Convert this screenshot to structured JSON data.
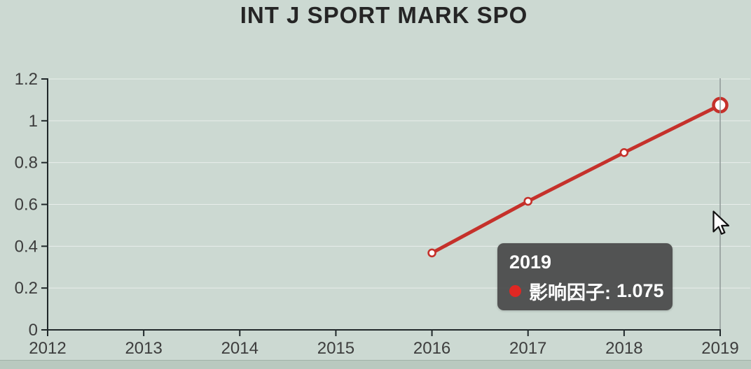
{
  "title": "INT J SPORT MARK SPO",
  "chart_data": {
    "type": "line",
    "title": "INT J SPORT MARK SPO",
    "xlabel": "",
    "ylabel": "",
    "xlim": [
      2012,
      2019
    ],
    "ylim": [
      0,
      1.2
    ],
    "x_ticks": [
      2012,
      2013,
      2014,
      2015,
      2016,
      2017,
      2018,
      2019
    ],
    "y_ticks": [
      0,
      0.2,
      0.4,
      0.6,
      0.8,
      1,
      1.2
    ],
    "y_tick_labels": [
      "0",
      "0.2",
      "0.4",
      "0.6",
      "0.8",
      "1",
      "1.2"
    ],
    "grid": "horizontal",
    "legend_position": "none",
    "series": [
      {
        "name": "影响因子",
        "color": "#c5312b",
        "marker": "open-circle",
        "x": [
          2016,
          2017,
          2018,
          2019
        ],
        "values": [
          0.368,
          0.615,
          0.848,
          1.075
        ]
      }
    ],
    "highlighted_point": {
      "year": 2019,
      "value": 1.075
    }
  },
  "tooltip": {
    "year": "2019",
    "series_label": "影响因子:",
    "value": "1.075"
  },
  "colors": {
    "background": "#ccd9d2",
    "bottom_strip": "#b9c9bf",
    "axis": "#20282a",
    "tick_text": "#3d3d3d",
    "grid": "rgba(255,255,255,0.55)",
    "crosshair": "#8e9898",
    "tooltip_dot": "#e02723",
    "line": "#c5312b"
  }
}
